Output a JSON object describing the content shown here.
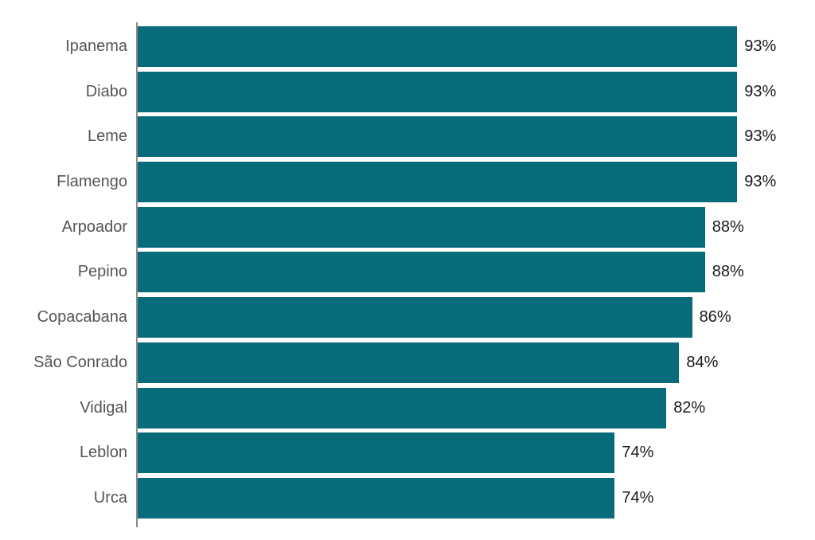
{
  "chart_data": {
    "type": "bar",
    "orientation": "horizontal",
    "title": "",
    "xlabel": "",
    "ylabel": "",
    "xlim": [
      0,
      100
    ],
    "grid": false,
    "legend": false,
    "categories": [
      "Ipanema",
      "Diabo",
      "Leme",
      "Flamengo",
      "Arpoador",
      "Pepino",
      "Copacabana",
      "São Conrado",
      "Vidigal",
      "Leblon",
      "Urca"
    ],
    "values": [
      93,
      93,
      93,
      93,
      88,
      88,
      86,
      84,
      82,
      74,
      74
    ],
    "value_labels": [
      "93%",
      "93%",
      "93%",
      "93%",
      "88%",
      "88%",
      "86%",
      "84%",
      "82%",
      "74%",
      "74%"
    ],
    "colors": {
      "bar": "#086b7a",
      "category_label": "#555555",
      "value_label": "#1a1a1a",
      "axis": "#8a8a8a",
      "background": "#ffffff"
    }
  }
}
